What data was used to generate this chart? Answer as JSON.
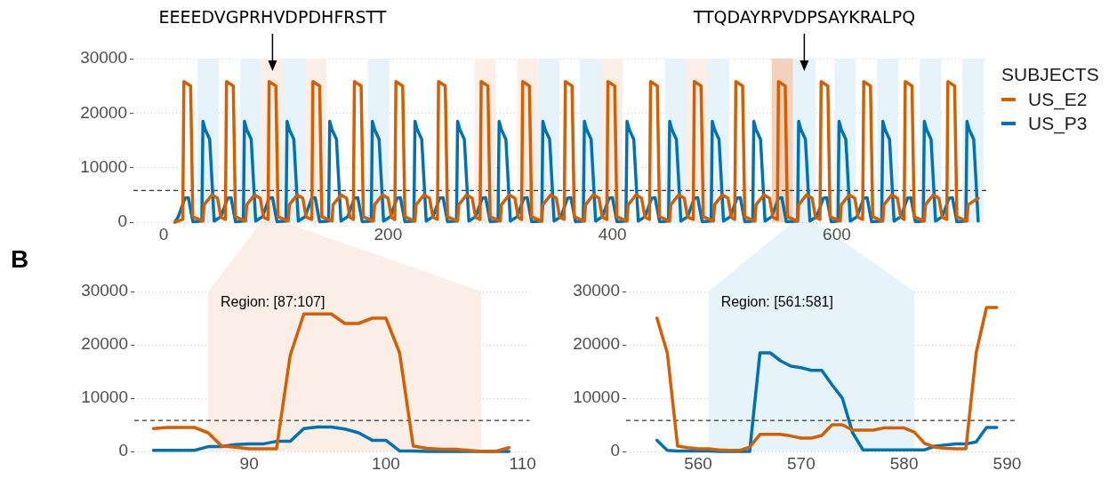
{
  "chart_data": [
    {
      "type": "line",
      "legend": "right",
      "legend_title": "SUBJECTS",
      "grid": "y",
      "xlim": [
        -27,
        734
      ],
      "xticks": [
        0,
        200,
        400,
        600
      ],
      "ylim": [
        0,
        30000
      ],
      "yticks": [
        0,
        10000,
        20000,
        30000
      ],
      "ref_lines": [
        {
          "axis": "y",
          "value": 5800,
          "line_style": "dashed",
          "color": "#333333"
        }
      ],
      "bands": [
        {
          "axis": "x",
          "from": 30,
          "to": 49,
          "color": "#e6f3fa"
        },
        {
          "axis": "x",
          "from": 68,
          "to": 87,
          "color": "#e6f3fa"
        },
        {
          "axis": "x",
          "from": 87,
          "to": 107,
          "color": "#fbeee6",
          "label": "EEEEDVGPRHVDPDHFRSTT"
        },
        {
          "axis": "x",
          "from": 106,
          "to": 126,
          "color": "#e6f3fa"
        },
        {
          "axis": "x",
          "from": 126,
          "to": 145,
          "color": "#fbeee6"
        },
        {
          "axis": "x",
          "from": 182,
          "to": 201,
          "color": "#e6f3fa"
        },
        {
          "axis": "x",
          "from": 277,
          "to": 296,
          "color": "#fbeee6"
        },
        {
          "axis": "x",
          "from": 315,
          "to": 334,
          "color": "#fbeee6"
        },
        {
          "axis": "x",
          "from": 334,
          "to": 353,
          "color": "#e6f3fa"
        },
        {
          "axis": "x",
          "from": 371,
          "to": 390,
          "color": "#e6f3fa"
        },
        {
          "axis": "x",
          "from": 390,
          "to": 409,
          "color": "#fbeee6"
        },
        {
          "axis": "x",
          "from": 447,
          "to": 466,
          "color": "#e6f3fa"
        },
        {
          "axis": "x",
          "from": 466,
          "to": 485,
          "color": "#fbeee6"
        },
        {
          "axis": "x",
          "from": 485,
          "to": 504,
          "color": "#e6f3fa"
        },
        {
          "axis": "x",
          "from": 542,
          "to": 561,
          "color": "#f2d2bc"
        },
        {
          "axis": "x",
          "from": 561,
          "to": 581,
          "color": "#e6f3fa",
          "label": "TTQDAYRPVDPSAYKRALPQ"
        },
        {
          "axis": "x",
          "from": 598,
          "to": 617,
          "color": "#e6f3fa"
        },
        {
          "axis": "x",
          "from": 636,
          "to": 655,
          "color": "#e6f3fa"
        },
        {
          "axis": "x",
          "from": 674,
          "to": 693,
          "color": "#e6f3fa"
        },
        {
          "axis": "x",
          "from": 712,
          "to": 731,
          "color": "#e6f3fa"
        }
      ],
      "series": [
        {
          "name": "US_E2",
          "color": "#d55e00",
          "x": [
            10,
            17,
            18,
            24,
            26,
            35,
            36,
            43,
            48,
            51,
            55,
            56,
            62,
            64,
            73,
            74,
            81,
            86,
            89,
            93,
            94,
            100,
            102,
            111,
            112,
            119,
            124,
            127,
            132,
            133,
            139,
            141,
            150,
            151,
            158,
            163,
            166,
            169,
            170,
            176,
            178,
            187,
            188,
            195,
            200,
            203,
            206,
            207,
            213,
            215,
            224,
            225,
            232,
            237,
            240,
            244,
            245,
            251,
            253,
            262,
            263,
            270,
            275,
            278,
            282,
            283,
            289,
            291,
            300,
            301,
            308,
            313,
            316,
            319,
            320,
            326,
            328,
            337,
            338,
            345,
            350,
            353,
            357,
            358,
            364,
            366,
            375,
            376,
            383,
            388,
            391,
            395,
            396,
            402,
            404,
            413,
            414,
            421,
            426,
            429,
            433,
            434,
            440,
            442,
            451,
            452,
            459,
            464,
            467,
            472,
            473,
            479,
            481,
            490,
            491,
            498,
            503,
            506,
            509,
            510,
            516,
            518,
            527,
            528,
            535,
            540,
            543,
            547,
            548,
            554,
            556,
            565,
            566,
            573,
            578,
            581,
            585,
            586,
            592,
            594,
            603,
            604,
            611,
            616,
            619,
            623,
            624,
            630,
            632,
            641,
            642,
            649,
            654,
            657,
            660,
            661,
            667,
            669,
            678,
            679,
            686,
            691,
            694,
            698,
            699,
            705,
            707,
            716,
            717,
            726
          ],
          "values": [
            0,
            500,
            25800,
            25000,
            1000,
            200,
            3200,
            5000,
            4400,
            900,
            500,
            25800,
            25000,
            1000,
            200,
            3200,
            5000,
            4400,
            900,
            500,
            25800,
            25000,
            1000,
            200,
            3200,
            5000,
            4400,
            900,
            500,
            25800,
            25000,
            1000,
            200,
            3200,
            5000,
            4400,
            900,
            500,
            25800,
            25000,
            1000,
            200,
            3200,
            5000,
            4400,
            900,
            500,
            25800,
            25000,
            1000,
            200,
            3200,
            5000,
            4400,
            900,
            500,
            25800,
            25000,
            1000,
            200,
            3200,
            5000,
            4400,
            900,
            500,
            25800,
            25000,
            1000,
            200,
            3200,
            5000,
            4400,
            900,
            500,
            25800,
            25000,
            1000,
            200,
            3200,
            5000,
            4400,
            900,
            500,
            25800,
            25000,
            1000,
            200,
            3200,
            5000,
            4400,
            900,
            500,
            25800,
            25000,
            1000,
            200,
            3200,
            5000,
            4400,
            900,
            500,
            25800,
            25000,
            1000,
            200,
            3200,
            5000,
            4400,
            900,
            500,
            25800,
            25000,
            1000,
            200,
            3200,
            5000,
            4400,
            900,
            500,
            25800,
            25000,
            1000,
            200,
            3200,
            5000,
            4400,
            900,
            500,
            25800,
            25000,
            1000,
            200,
            3200,
            5000,
            4400,
            900,
            500,
            25800,
            25000,
            1000,
            200,
            3200,
            5000,
            4400,
            900,
            500,
            25800,
            25000,
            1000,
            200,
            3200,
            5000,
            4400,
            900,
            500,
            25800,
            25000,
            1000,
            200,
            3200,
            5000,
            4400,
            900,
            500,
            25800,
            25000,
            1000,
            200,
            3200,
            4400
          ]
        },
        {
          "name": "US_P3",
          "color": "#0072b2",
          "x": [
            10,
            13,
            19,
            22,
            26,
            34,
            35,
            37,
            41,
            45,
            51,
            57,
            60,
            64,
            71,
            72,
            74,
            78,
            82,
            88,
            94,
            97,
            101,
            109,
            110,
            112,
            116,
            120,
            126,
            132,
            135,
            139,
            147,
            148,
            150,
            154,
            158,
            164,
            170,
            173,
            177,
            185,
            186,
            188,
            192,
            196,
            202,
            208,
            211,
            215,
            223,
            224,
            226,
            230,
            234,
            240,
            246,
            249,
            253,
            261,
            262,
            264,
            268,
            272,
            278,
            284,
            287,
            291,
            298,
            299,
            301,
            305,
            309,
            315,
            321,
            324,
            328,
            337,
            338,
            340,
            344,
            348,
            354,
            360,
            363,
            367,
            374,
            375,
            377,
            381,
            385,
            391,
            397,
            400,
            404,
            412,
            413,
            415,
            419,
            423,
            429,
            435,
            438,
            442,
            450,
            451,
            453,
            457,
            461,
            467,
            473,
            476,
            480,
            488,
            489,
            491,
            495,
            499,
            505,
            511,
            514,
            518,
            525,
            526,
            528,
            532,
            536,
            542,
            548,
            551,
            555,
            565,
            566,
            568,
            572,
            576,
            582,
            588,
            591,
            595,
            601,
            602,
            604,
            608,
            612,
            618,
            624,
            627,
            631,
            640,
            641,
            643,
            647,
            651,
            657,
            663,
            666,
            670,
            677,
            678,
            680,
            684,
            688,
            694,
            700,
            703,
            707,
            715,
            716,
            718,
            722,
            726
          ],
          "values": [
            0,
            1000,
            4400,
            4500,
            100,
            200,
            18500,
            17000,
            15200,
            200,
            1000,
            4400,
            4500,
            100,
            200,
            18500,
            17000,
            15200,
            200,
            1000,
            4400,
            4500,
            100,
            200,
            18500,
            17000,
            15200,
            200,
            1000,
            4400,
            4500,
            100,
            200,
            18500,
            17000,
            15200,
            200,
            1000,
            4400,
            4500,
            100,
            200,
            18500,
            17000,
            15200,
            200,
            1000,
            4400,
            4500,
            100,
            200,
            18500,
            17000,
            15200,
            200,
            1000,
            4400,
            4500,
            100,
            200,
            18500,
            17000,
            15200,
            200,
            1000,
            4400,
            4500,
            100,
            200,
            18500,
            17000,
            15200,
            200,
            1000,
            4400,
            4500,
            100,
            200,
            18500,
            17000,
            15200,
            200,
            1000,
            4400,
            4500,
            100,
            200,
            18500,
            17000,
            15200,
            200,
            1000,
            4400,
            4500,
            100,
            200,
            18500,
            17000,
            15200,
            200,
            1000,
            4400,
            4500,
            100,
            200,
            18500,
            17000,
            15200,
            200,
            1000,
            4400,
            4500,
            100,
            200,
            18500,
            17000,
            15200,
            200,
            1000,
            4400,
            4500,
            100,
            200,
            18500,
            17000,
            15200,
            200,
            1000,
            4400,
            4500,
            100,
            200,
            18500,
            17000,
            15200,
            200,
            1000,
            4400,
            4500,
            100,
            200,
            18500,
            17000,
            15200,
            200,
            1000,
            4400,
            4500,
            100,
            200,
            18500,
            17000,
            15200,
            200,
            1000,
            4400,
            4500,
            100,
            200,
            18500,
            17000,
            15200,
            200,
            1000,
            4400,
            4500,
            100,
            200,
            18500,
            17000,
            15200,
            200
          ]
        }
      ]
    },
    {
      "type": "line",
      "grid": "y",
      "xlim": [
        81.6,
        110.5
      ],
      "xticks": [
        90,
        100,
        110
      ],
      "ylim": [
        0,
        30000
      ],
      "yticks": [
        0,
        10000,
        20000,
        30000
      ],
      "annotations": [
        "B"
      ],
      "ref_lines": [
        {
          "axis": "y",
          "value": 5800,
          "line_style": "dashed",
          "color": "#333333"
        }
      ],
      "bands": [
        {
          "axis": "x",
          "from": 87,
          "to": 107,
          "color": "#fbeee6",
          "label": "Region: [87:107]"
        }
      ],
      "x": [
        83,
        84,
        85,
        86,
        87,
        88,
        89,
        90,
        91,
        92,
        93,
        94,
        95,
        96,
        97,
        98,
        99,
        100,
        101,
        102,
        103,
        104,
        105,
        106,
        107,
        108,
        109
      ],
      "series": [
        {
          "color": "#d55e00",
          "values": [
            4300,
            4500,
            4500,
            4500,
            3500,
            1000,
            800,
            500,
            500,
            500,
            18000,
            25800,
            25800,
            25800,
            24000,
            24000,
            25000,
            25000,
            18500,
            1000,
            600,
            400,
            400,
            200,
            0,
            0,
            700
          ]
        },
        {
          "color": "#0072b2",
          "values": [
            200,
            200,
            200,
            200,
            900,
            900,
            1300,
            1400,
            1400,
            1900,
            1900,
            4300,
            4600,
            4600,
            4200,
            3500,
            2100,
            2100,
            100,
            100,
            0,
            0,
            0,
            0,
            0,
            0,
            0
          ]
        }
      ]
    },
    {
      "type": "line",
      "grid": "y",
      "xlim": [
        553,
        591
      ],
      "xticks": [
        560,
        570,
        580,
        590
      ],
      "ylim": [
        0,
        30000
      ],
      "yticks": [
        0,
        10000,
        20000,
        30000
      ],
      "ref_lines": [
        {
          "axis": "y",
          "value": 5800,
          "line_style": "dashed",
          "color": "#333333"
        }
      ],
      "bands": [
        {
          "axis": "x",
          "from": 561,
          "to": 581,
          "color": "#e6f3fa",
          "label": "Region: [561:581]"
        }
      ],
      "x": [
        556,
        557,
        558,
        559,
        560,
        561,
        562,
        563,
        564,
        565,
        566,
        567,
        568,
        569,
        570,
        571,
        572,
        573,
        574,
        575,
        576,
        577,
        578,
        579,
        580,
        581,
        582,
        583,
        584,
        585,
        586,
        587,
        588,
        589
      ],
      "series": [
        {
          "color": "#d55e00",
          "values": [
            25000,
            18500,
            1000,
            700,
            500,
            500,
            300,
            200,
            200,
            800,
            3200,
            3200,
            3200,
            2900,
            2500,
            2500,
            3000,
            5000,
            5000,
            4000,
            4000,
            4000,
            4400,
            4400,
            4400,
            3600,
            1500,
            800,
            600,
            500,
            500,
            18500,
            27000,
            27000
          ]
        },
        {
          "color": "#0072b2",
          "values": [
            2100,
            200,
            100,
            100,
            100,
            100,
            0,
            0,
            0,
            0,
            18500,
            18500,
            17000,
            16000,
            15700,
            15200,
            15200,
            12500,
            10000,
            3500,
            300,
            300,
            300,
            300,
            300,
            300,
            300,
            1000,
            1200,
            1400,
            1400,
            1800,
            4500,
            4500
          ]
        }
      ]
    }
  ]
}
